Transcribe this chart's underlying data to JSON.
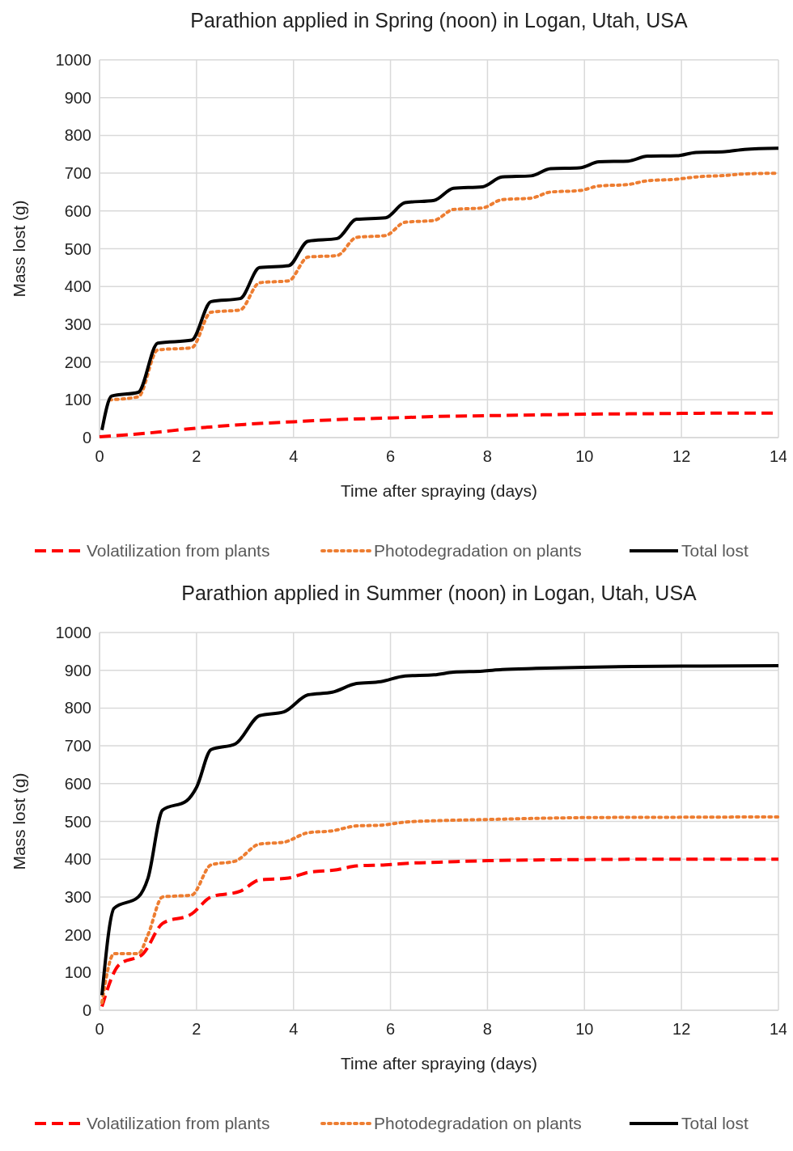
{
  "chart_data": [
    {
      "type": "line",
      "title": "Parathion applied in Spring (noon) in Logan, Utah, USA",
      "xlabel": "Time after spraying (days)",
      "ylabel": "Mass lost (g)",
      "xlim": [
        0,
        14
      ],
      "xticks": [
        0,
        2,
        4,
        6,
        8,
        10,
        12,
        14
      ],
      "ylim": [
        0,
        1000
      ],
      "yticks": [
        0,
        100,
        200,
        300,
        400,
        500,
        600,
        700,
        800,
        900,
        1000
      ],
      "grid": true,
      "legend": "bottom",
      "marker": "none",
      "series": [
        {
          "name": "Volatilization from plants",
          "color": "#ff0000",
          "line_style": "dashed",
          "x": [
            0,
            1,
            2,
            3,
            4,
            5,
            6,
            7,
            8,
            9,
            10,
            11,
            12,
            13,
            14
          ],
          "values": [
            2,
            12,
            25,
            35,
            42,
            48,
            52,
            56,
            58,
            60,
            62,
            63,
            64,
            65,
            65
          ]
        },
        {
          "name": "Photodegradation on plants",
          "color": "#ed7d31",
          "line_style": "dotted",
          "x": [
            0.2,
            0.8,
            1.2,
            1.9,
            2.3,
            2.9,
            3.3,
            3.9,
            4.3,
            4.9,
            5.3,
            5.9,
            6.3,
            6.9,
            7.3,
            7.9,
            8.3,
            8.9,
            9.3,
            9.9,
            10.3,
            10.9,
            11.3,
            11.9,
            12.3,
            12.9,
            13.3,
            14
          ],
          "values": [
            100,
            108,
            232,
            238,
            332,
            338,
            410,
            415,
            478,
            482,
            530,
            535,
            570,
            575,
            604,
            608,
            630,
            634,
            650,
            654,
            666,
            670,
            680,
            684,
            690,
            694,
            698,
            700
          ]
        },
        {
          "name": "Total lost",
          "color": "#000000",
          "line_style": "solid",
          "x": [
            0.05,
            0.25,
            0.8,
            1.2,
            1.9,
            2.3,
            2.9,
            3.3,
            3.9,
            4.3,
            4.9,
            5.3,
            5.9,
            6.3,
            6.9,
            7.3,
            7.9,
            8.3,
            8.9,
            9.3,
            9.9,
            10.3,
            10.9,
            11.3,
            11.9,
            12.3,
            12.9,
            13.3,
            14
          ],
          "values": [
            20,
            110,
            120,
            250,
            258,
            360,
            368,
            450,
            455,
            520,
            527,
            578,
            582,
            622,
            628,
            660,
            664,
            690,
            693,
            712,
            714,
            730,
            732,
            745,
            746,
            755,
            757,
            763,
            766
          ]
        }
      ]
    },
    {
      "type": "line",
      "title": "Parathion applied in Summer (noon) in Logan, Utah, USA",
      "xlabel": "Time after spraying (days)",
      "ylabel": "Mass lost (g)",
      "xlim": [
        0,
        14
      ],
      "xticks": [
        0,
        2,
        4,
        6,
        8,
        10,
        12,
        14
      ],
      "ylim": [
        0,
        1000
      ],
      "yticks": [
        0,
        100,
        200,
        300,
        400,
        500,
        600,
        700,
        800,
        900,
        1000
      ],
      "grid": true,
      "legend": "bottom",
      "marker": "none",
      "series": [
        {
          "name": "Volatilization from plants",
          "color": "#ff0000",
          "line_style": "dashed",
          "x": [
            0.05,
            0.4,
            0.9,
            1.3,
            1.9,
            2.3,
            2.9,
            3.3,
            3.9,
            4.3,
            4.9,
            5.3,
            5.9,
            6.5,
            7,
            8,
            9,
            10,
            12,
            14
          ],
          "values": [
            10,
            120,
            150,
            230,
            255,
            300,
            315,
            345,
            350,
            365,
            372,
            382,
            385,
            390,
            392,
            396,
            398,
            399,
            400,
            400
          ]
        },
        {
          "name": "Photodegradation on plants",
          "color": "#ed7d31",
          "line_style": "dotted",
          "x": [
            0.05,
            0.3,
            0.8,
            1,
            1.3,
            1.9,
            2.3,
            2.8,
            3.3,
            3.8,
            4.3,
            4.8,
            5.3,
            5.8,
            6.3,
            7,
            8,
            9,
            10,
            12,
            14
          ],
          "values": [
            20,
            150,
            150,
            200,
            300,
            305,
            385,
            395,
            440,
            445,
            470,
            475,
            488,
            490,
            498,
            502,
            505,
            508,
            510,
            511,
            512
          ]
        },
        {
          "name": "Total lost",
          "color": "#000000",
          "line_style": "solid",
          "x": [
            0.05,
            0.3,
            0.8,
            1,
            1.3,
            1.8,
            2,
            2.3,
            2.8,
            3.3,
            3.8,
            4.3,
            4.8,
            5.3,
            5.8,
            6.3,
            6.9,
            7.3,
            7.9,
            8.3,
            9,
            10,
            11,
            12,
            14
          ],
          "values": [
            40,
            270,
            300,
            350,
            530,
            555,
            590,
            690,
            705,
            780,
            790,
            835,
            842,
            865,
            870,
            885,
            888,
            895,
            898,
            902,
            905,
            908,
            910,
            911,
            912
          ]
        }
      ]
    }
  ]
}
